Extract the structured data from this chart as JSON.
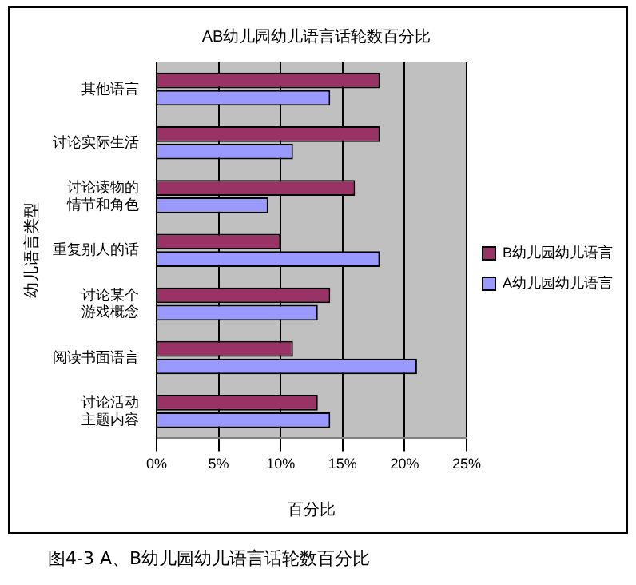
{
  "chart_data": {
    "type": "bar",
    "orientation": "horizontal",
    "title": "AB幼儿园幼儿语言话轮数百分比",
    "xlabel": "百分比",
    "ylabel": "幼儿语言类型",
    "categories": [
      "其他语言",
      "讨论实际生活",
      "讨论读物的情节和角色",
      "重复别人的话",
      "讨论某个游戏概念",
      "阅读书面语言",
      "讨论活动主题内容"
    ],
    "series": [
      {
        "name": "B幼儿园幼儿语言",
        "color": "#993366",
        "values": [
          18,
          18,
          16,
          10,
          14,
          11,
          13
        ]
      },
      {
        "name": "A幼儿园幼儿语言",
        "color": "#9999ff",
        "values": [
          14,
          11,
          9,
          18,
          13,
          21,
          14
        ]
      }
    ],
    "xlim": [
      0,
      25
    ],
    "xticks": [
      {
        "value": 0,
        "label": "0%"
      },
      {
        "value": 5,
        "label": "5%"
      },
      {
        "value": 10,
        "label": "10%"
      },
      {
        "value": 15,
        "label": "15%"
      },
      {
        "value": 20,
        "label": "20%"
      },
      {
        "value": 25,
        "label": "25%"
      }
    ],
    "grid": "x",
    "legend": "right",
    "annotations": [
      "图4-3  A、B幼儿园幼儿语言话轮数百分比"
    ]
  }
}
